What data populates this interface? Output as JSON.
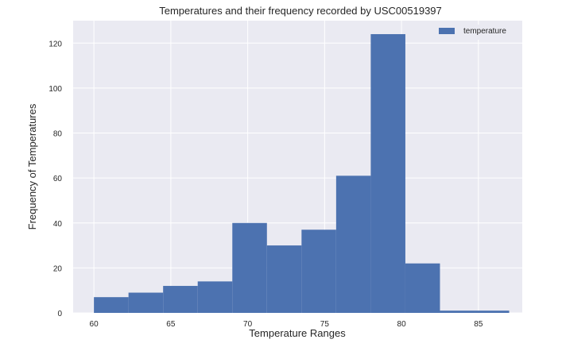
{
  "chart_data": {
    "type": "bar",
    "title": "Temperatures and their frequency recorded by USC00519397",
    "xlabel": "Temperature Ranges",
    "ylabel": "Frequency of Temperatures",
    "xlim": [
      58.65,
      87.85
    ],
    "ylim": [
      0,
      130
    ],
    "xticks": [
      60,
      65,
      70,
      75,
      80,
      85
    ],
    "yticks": [
      0,
      20,
      40,
      60,
      80,
      100,
      120
    ],
    "grid": true,
    "legend_position": "top-right",
    "series": [
      {
        "name": "temperature",
        "color": "#4c72b0",
        "bins": [
          {
            "x0": 60.0,
            "x1": 62.25,
            "value": 7
          },
          {
            "x0": 62.25,
            "x1": 64.5,
            "value": 9
          },
          {
            "x0": 64.5,
            "x1": 66.75,
            "value": 12
          },
          {
            "x0": 66.75,
            "x1": 69.0,
            "value": 14
          },
          {
            "x0": 69.0,
            "x1": 71.25,
            "value": 40
          },
          {
            "x0": 71.25,
            "x1": 73.5,
            "value": 30
          },
          {
            "x0": 73.5,
            "x1": 75.75,
            "value": 37
          },
          {
            "x0": 75.75,
            "x1": 78.0,
            "value": 61
          },
          {
            "x0": 78.0,
            "x1": 80.25,
            "value": 124
          },
          {
            "x0": 80.25,
            "x1": 82.5,
            "value": 22
          },
          {
            "x0": 82.5,
            "x1": 84.75,
            "value": 1
          },
          {
            "x0": 84.75,
            "x1": 87.0,
            "value": 1
          }
        ]
      }
    ]
  },
  "colors": {
    "plot_background": "#eaeaf2",
    "grid": "#ffffff",
    "bar": "#4c72b0",
    "text": "#262626"
  }
}
